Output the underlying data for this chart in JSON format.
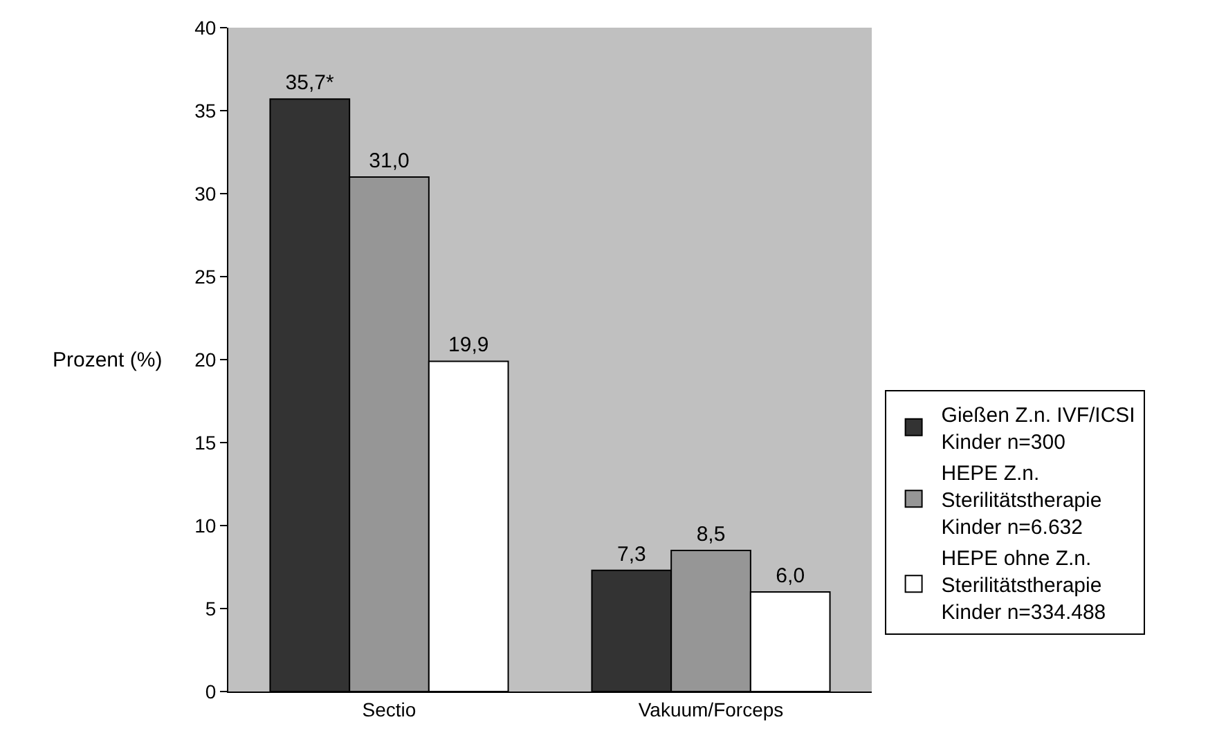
{
  "chart_data": {
    "type": "bar",
    "ylabel": "Prozent (%)",
    "categories": [
      "Sectio",
      "Vakuum/Forceps"
    ],
    "series": [
      {
        "name": "Gießen Z.n. IVF/ICSI  Kinder n=300",
        "color": "#333333",
        "values": [
          35.7,
          7.3
        ],
        "value_labels": [
          "35,7*",
          "7,3"
        ]
      },
      {
        "name": "HEPE Z.n. Sterilitätstherapie Kinder n=6.632",
        "color": "#969696",
        "values": [
          31.0,
          8.5
        ],
        "value_labels": [
          "31,0",
          "8,5"
        ]
      },
      {
        "name": "HEPE ohne Z.n. Sterilitätstherapie Kinder n=334.488",
        "color": "#ffffff",
        "values": [
          19.9,
          6.0
        ],
        "value_labels": [
          "19,9",
          "6,0"
        ]
      }
    ],
    "ylim": [
      0,
      40
    ],
    "yticks": [
      0,
      5,
      10,
      15,
      20,
      25,
      30,
      35,
      40
    ],
    "grid": false,
    "legend": "right"
  }
}
